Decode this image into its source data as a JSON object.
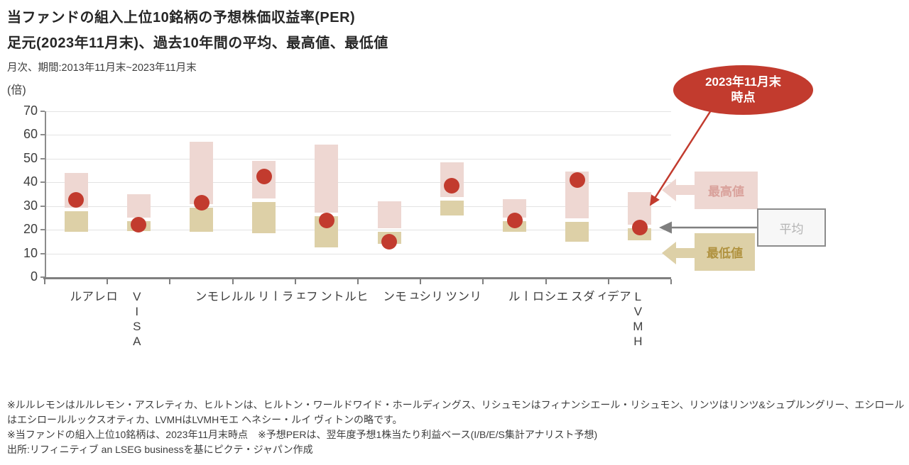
{
  "header": {
    "title": "当ファンドの組入上位10銘柄の予想株価収益率(PER)",
    "subtitle": "足元(2023年11月末)、過去10年間の平均、最高値、最低値",
    "period": "月次、期間:2013年11月末~2023年11月末",
    "y_unit": "(倍)"
  },
  "chart_data": {
    "type": "range-bar-with-point",
    "categories": [
      "ロレアル",
      "VISA",
      "ルルレモン",
      "フェラーリ",
      "ヒルトン",
      "リシュモン",
      "リンツ",
      "エシロール",
      "アディダス",
      "LVMH"
    ],
    "series": [
      {
        "name": "最高値",
        "values": [
          44,
          35,
          57,
          49,
          56,
          32,
          48.5,
          33,
          44.5,
          36
        ]
      },
      {
        "name": "平均",
        "values": [
          28.5,
          24.5,
          30,
          32.5,
          26.5,
          20,
          33,
          24.5,
          24,
          21.5
        ]
      },
      {
        "name": "最低値",
        "values": [
          19,
          19.5,
          19,
          18.5,
          12.5,
          14,
          26,
          19,
          15,
          15.5
        ]
      },
      {
        "name": "2023年11月末時点",
        "values": [
          32.5,
          22,
          31.5,
          42.5,
          24,
          15,
          38.5,
          24,
          41,
          21
        ]
      }
    ],
    "ylim": [
      0,
      70
    ],
    "yticks": [
      0,
      10,
      20,
      30,
      40,
      50,
      60,
      70
    ],
    "grid": true,
    "legend_position": "right-annotations"
  },
  "annotations": {
    "current": {
      "line1": "2023年11月末",
      "line2": "時点"
    },
    "max_label": "最高値",
    "avg_label": "平均",
    "min_label": "最低値"
  },
  "footnotes": [
    "※ルルレモンはルルレモン・アスレティカ、ヒルトンは、ヒルトン・ワールドワイド・ホールディングス、リシュモンはフィナンシエール・リシュモン、リンツはリンツ&シュプルングリー、エシロールはエシロールルックスオティカ、LVMHはLVMHモエ ヘネシー・ルイ ヴィトンの略です。",
    "※当ファンドの組入上位10銘柄は、2023年11月末時点　※予想PERは、翌年度予想1株当たり利益ベース(I/B/E/S集計アナリスト予想)",
    "出所:リフィニティブ an LSEG businessを基にピクテ・ジャパン作成"
  ],
  "colors": {
    "max_bar": "#eed7d2",
    "min_bar": "#ddd0a7",
    "point": "#c23b2e",
    "annotation_red": "#c23b2e",
    "max_text": "#d9a19b",
    "min_text": "#b0923f",
    "avg_text": "#b3b3b3",
    "avg_border": "#8c8c8c",
    "avg_bg": "#f7f7f7",
    "gray_arrow": "#7f7f7f",
    "axis": "#7f7f7f",
    "gridline": "#e3e3e3"
  }
}
